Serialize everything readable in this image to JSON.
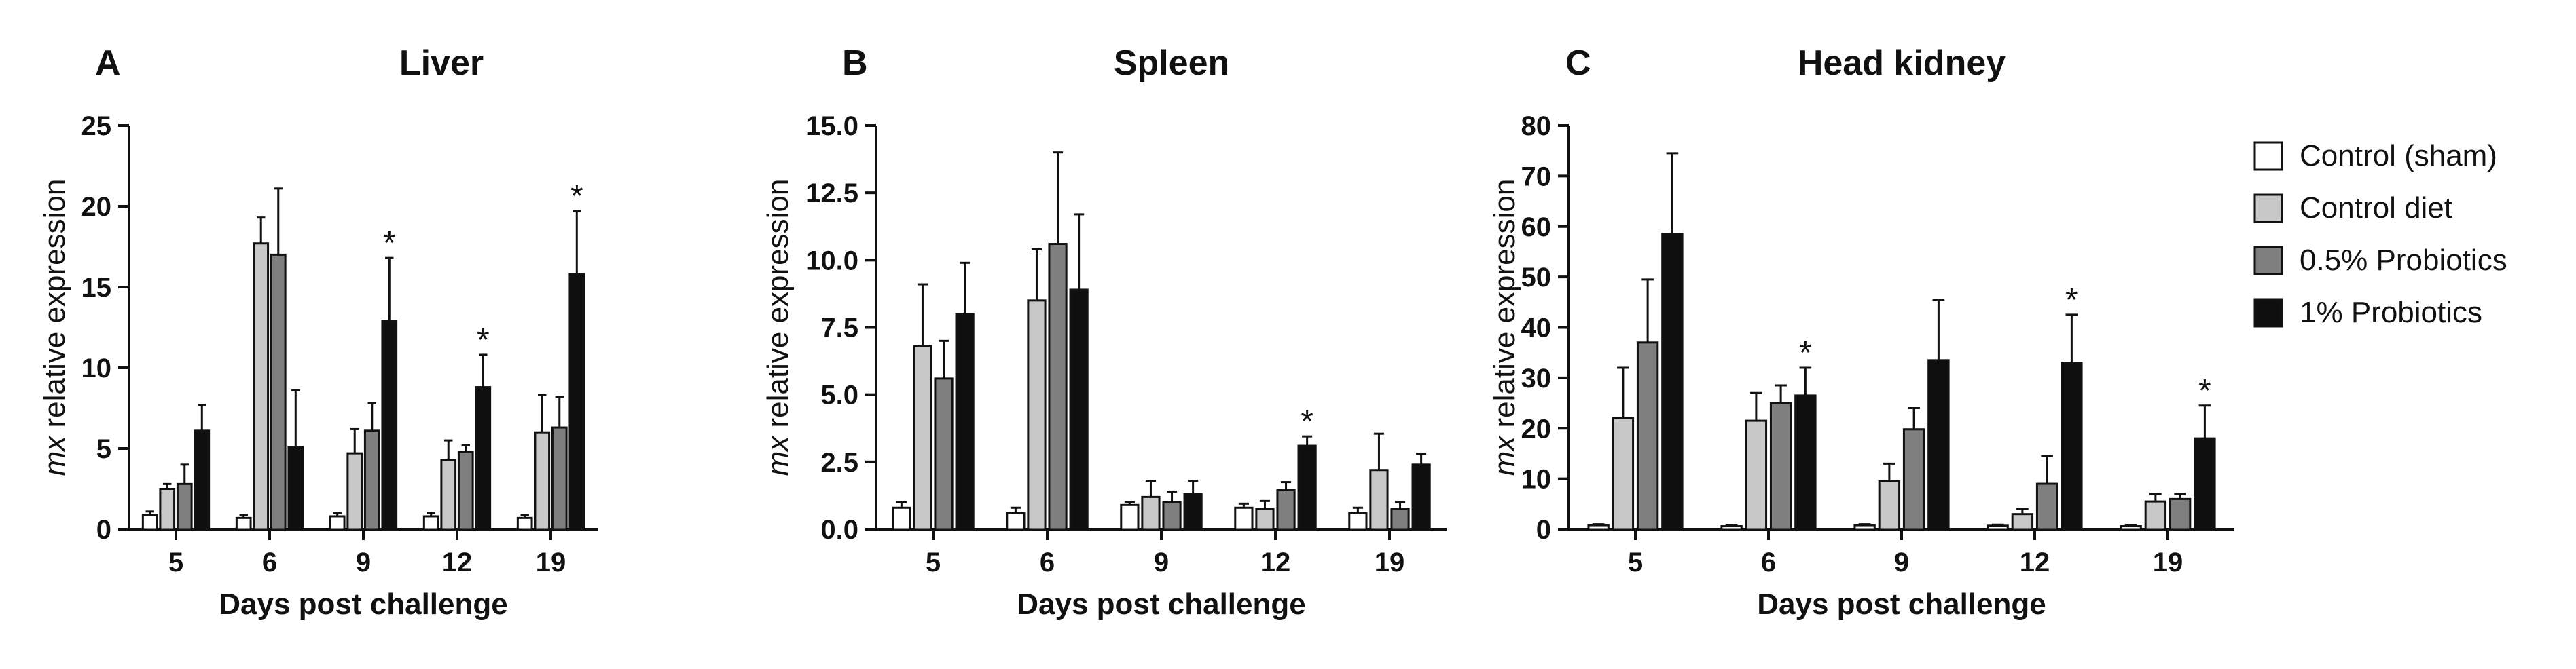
{
  "legend": {
    "entries": [
      {
        "name": "Control (sham)",
        "color": "#ffffff"
      },
      {
        "name": "Control diet",
        "color": "#c8c8c8"
      },
      {
        "name": "0.5% Probiotics",
        "color": "#7f7f7f"
      },
      {
        "name": "1% Probiotics",
        "color": "#0f0f0f"
      }
    ]
  },
  "chart_data": [
    {
      "type": "bar",
      "letter": "A",
      "title": "Liver",
      "xlabel": "Days post challenge",
      "ylabel_italic": "mx",
      "ylabel_rest": " relative expression",
      "ylim": [
        0,
        25
      ],
      "yticks": [
        "0",
        "5",
        "10",
        "15",
        "20",
        "25"
      ],
      "yticks_values": [
        0,
        5,
        10,
        15,
        20,
        25
      ],
      "categories": [
        "5",
        "6",
        "9",
        "12",
        "19"
      ],
      "series": [
        {
          "name": "Control (sham)",
          "values": [
            0.9,
            0.7,
            0.8,
            0.8,
            0.7
          ],
          "errors": [
            0.2,
            0.2,
            0.2,
            0.2,
            0.2
          ]
        },
        {
          "name": "Control diet",
          "values": [
            2.5,
            17.7,
            4.7,
            4.3,
            6.0
          ],
          "errors": [
            0.3,
            1.6,
            1.5,
            1.2,
            2.3
          ]
        },
        {
          "name": "0.5% Probiotics",
          "values": [
            2.8,
            17.0,
            6.1,
            4.8,
            6.3
          ],
          "errors": [
            1.2,
            4.1,
            1.7,
            0.4,
            1.9
          ]
        },
        {
          "name": "1% Probiotics",
          "values": [
            6.1,
            5.1,
            12.9,
            8.8,
            15.8
          ],
          "errors": [
            1.6,
            3.5,
            3.9,
            2.0,
            3.9
          ]
        }
      ],
      "significance": [
        "",
        "",
        "*",
        "*",
        "*"
      ]
    },
    {
      "type": "bar",
      "letter": "B",
      "title": "Spleen",
      "xlabel": "Days post challenge",
      "ylabel_italic": "mx",
      "ylabel_rest": " relative expression",
      "ylim": [
        0,
        15
      ],
      "yticks": [
        "0.0",
        "2.5",
        "5.0",
        "7.5",
        "10.0",
        "12.5",
        "15.0"
      ],
      "yticks_values": [
        0,
        2.5,
        5,
        7.5,
        10,
        12.5,
        15
      ],
      "categories": [
        "5",
        "6",
        "9",
        "12",
        "19"
      ],
      "series": [
        {
          "name": "Control (sham)",
          "values": [
            0.8,
            0.6,
            0.9,
            0.8,
            0.6
          ],
          "errors": [
            0.2,
            0.2,
            0.1,
            0.15,
            0.2
          ]
        },
        {
          "name": "Control diet",
          "values": [
            6.8,
            8.5,
            1.2,
            0.75,
            2.2
          ],
          "errors": [
            2.3,
            1.9,
            0.6,
            0.3,
            1.35
          ]
        },
        {
          "name": "0.5% Probiotics",
          "values": [
            5.6,
            10.6,
            1.0,
            1.45,
            0.75
          ],
          "errors": [
            1.4,
            3.4,
            0.4,
            0.3,
            0.25
          ]
        },
        {
          "name": "1% Probiotics",
          "values": [
            8.0,
            8.9,
            1.3,
            3.1,
            2.4
          ],
          "errors": [
            1.9,
            2.8,
            0.5,
            0.35,
            0.4
          ]
        }
      ],
      "significance": [
        "",
        "",
        "",
        "*",
        ""
      ]
    },
    {
      "type": "bar",
      "letter": "C",
      "title": "Head kidney",
      "xlabel": "Days post challenge",
      "ylabel_italic": "mx",
      "ylabel_rest": " relative expression",
      "ylim": [
        0,
        80
      ],
      "yticks": [
        "0",
        "10",
        "20",
        "30",
        "40",
        "50",
        "60",
        "70",
        "80"
      ],
      "yticks_values": [
        0,
        10,
        20,
        30,
        40,
        50,
        60,
        70,
        80
      ],
      "categories": [
        "5",
        "6",
        "9",
        "12",
        "19"
      ],
      "series": [
        {
          "name": "Control (sham)",
          "values": [
            0.8,
            0.6,
            0.8,
            0.7,
            0.6
          ],
          "errors": [
            0.2,
            0.2,
            0.2,
            0.2,
            0.2
          ]
        },
        {
          "name": "Control diet",
          "values": [
            22.0,
            21.5,
            9.5,
            3.0,
            5.5
          ],
          "errors": [
            10.0,
            5.5,
            3.5,
            1.0,
            1.5
          ]
        },
        {
          "name": "0.5% Probiotics",
          "values": [
            37.0,
            25.0,
            19.8,
            9.0,
            6.0
          ],
          "errors": [
            12.5,
            3.5,
            4.2,
            5.5,
            1.0
          ]
        },
        {
          "name": "1% Probiotics",
          "values": [
            58.5,
            26.5,
            33.5,
            33.0,
            18.0
          ],
          "errors": [
            16.0,
            5.5,
            12.0,
            9.5,
            6.5
          ]
        }
      ],
      "significance": [
        "",
        "*",
        "",
        "*",
        "*"
      ]
    }
  ]
}
